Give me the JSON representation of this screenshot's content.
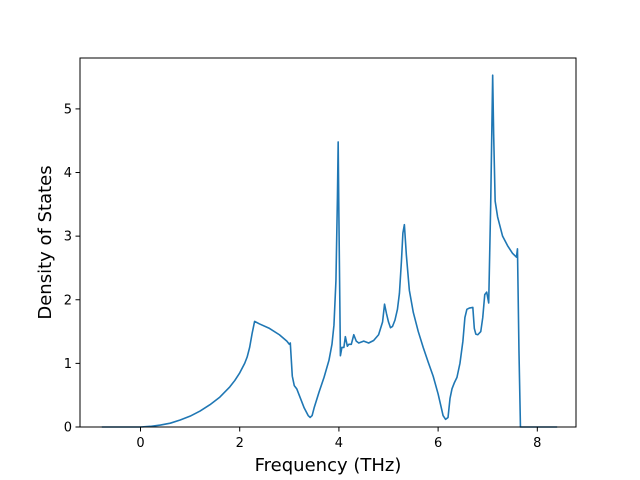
{
  "chart_data": {
    "type": "line",
    "title": "",
    "xlabel": "Frequency (THz)",
    "ylabel": "Density of States",
    "xlim": [
      -1.22,
      8.78
    ],
    "ylim": [
      0,
      5.8
    ],
    "xticks": [
      0,
      2,
      4,
      6,
      8
    ],
    "yticks": [
      0,
      1,
      2,
      3,
      4,
      5
    ],
    "grid": false,
    "legend": "none",
    "series": [
      {
        "color": "#1f77b4",
        "x": [
          -0.78,
          -0.5,
          -0.2,
          0.0,
          0.2,
          0.4,
          0.6,
          0.8,
          1.0,
          1.2,
          1.4,
          1.6,
          1.8,
          1.9,
          2.0,
          2.1,
          2.15,
          2.2,
          2.25,
          2.3,
          2.4,
          2.6,
          2.8,
          2.95,
          3.0,
          3.02,
          3.06,
          3.1,
          3.15,
          3.2,
          3.3,
          3.38,
          3.42,
          3.46,
          3.5,
          3.6,
          3.7,
          3.8,
          3.86,
          3.9,
          3.94,
          3.97,
          3.985,
          4.0,
          4.03,
          4.06,
          4.1,
          4.13,
          4.17,
          4.2,
          4.25,
          4.3,
          4.35,
          4.4,
          4.5,
          4.6,
          4.7,
          4.8,
          4.88,
          4.92,
          4.96,
          5.0,
          5.04,
          5.08,
          5.13,
          5.18,
          5.22,
          5.26,
          5.29,
          5.32,
          5.36,
          5.42,
          5.5,
          5.6,
          5.7,
          5.8,
          5.9,
          6.0,
          6.05,
          6.1,
          6.15,
          6.2,
          6.24,
          6.28,
          6.33,
          6.38,
          6.44,
          6.5,
          6.54,
          6.58,
          6.63,
          6.7,
          6.73,
          6.76,
          6.8,
          6.86,
          6.9,
          6.94,
          6.98,
          7.02,
          7.06,
          7.1,
          7.12,
          7.15,
          7.2,
          7.3,
          7.4,
          7.5,
          7.58,
          7.6,
          7.63,
          7.66,
          7.7,
          7.8,
          8.0,
          8.2,
          8.4
        ],
        "y": [
          0,
          0,
          0,
          0,
          0.01,
          0.03,
          0.06,
          0.11,
          0.17,
          0.25,
          0.35,
          0.47,
          0.63,
          0.73,
          0.85,
          1.0,
          1.1,
          1.25,
          1.47,
          1.66,
          1.62,
          1.55,
          1.45,
          1.35,
          1.3,
          1.32,
          0.8,
          0.65,
          0.6,
          0.5,
          0.3,
          0.18,
          0.15,
          0.18,
          0.3,
          0.55,
          0.78,
          1.05,
          1.3,
          1.6,
          2.3,
          3.6,
          4.48,
          3.3,
          1.12,
          1.25,
          1.25,
          1.42,
          1.27,
          1.3,
          1.3,
          1.45,
          1.35,
          1.32,
          1.35,
          1.32,
          1.36,
          1.45,
          1.65,
          1.93,
          1.78,
          1.65,
          1.56,
          1.58,
          1.68,
          1.85,
          2.1,
          2.6,
          3.05,
          3.18,
          2.7,
          2.15,
          1.8,
          1.5,
          1.25,
          1.02,
          0.8,
          0.52,
          0.35,
          0.18,
          0.12,
          0.15,
          0.45,
          0.6,
          0.7,
          0.78,
          1.0,
          1.35,
          1.72,
          1.85,
          1.87,
          1.88,
          1.55,
          1.46,
          1.45,
          1.5,
          1.72,
          2.08,
          2.12,
          1.95,
          3.5,
          5.53,
          4.6,
          3.55,
          3.3,
          3.0,
          2.85,
          2.73,
          2.67,
          2.8,
          1.2,
          0,
          0,
          0,
          0,
          0,
          0
        ]
      }
    ]
  }
}
